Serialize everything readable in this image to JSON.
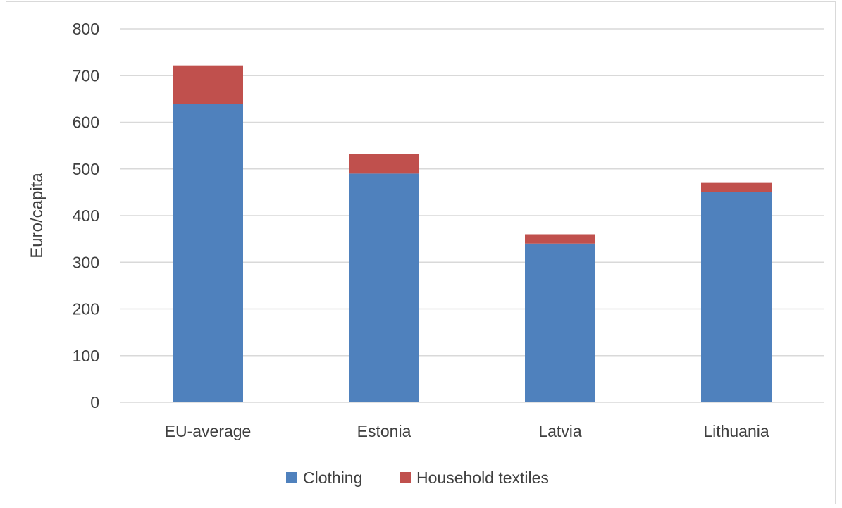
{
  "chart_data": {
    "type": "bar",
    "stacked": true,
    "title": "",
    "xlabel": "",
    "ylabel": "Euro/capita",
    "categories": [
      "EU-average",
      "Estonia",
      "Latvia",
      "Lithuania"
    ],
    "series": [
      {
        "name": "Clothing",
        "color": "#4f81bd",
        "values": [
          640,
          490,
          340,
          450
        ]
      },
      {
        "name": "Household textiles",
        "color": "#c0504d",
        "values": [
          82,
          42,
          20,
          20
        ]
      }
    ],
    "ylim": [
      0,
      800
    ],
    "yticks": [
      0,
      100,
      200,
      300,
      400,
      500,
      600,
      700,
      800
    ],
    "grid": true,
    "legend_position": "bottom"
  }
}
